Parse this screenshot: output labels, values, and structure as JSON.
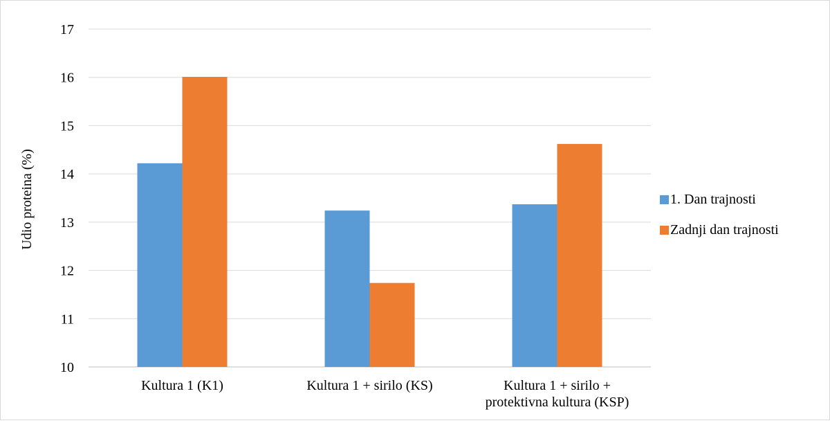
{
  "chart_data": {
    "type": "bar",
    "title": "",
    "xlabel": "",
    "ylabel": "Udio proteina (%)",
    "ylim": [
      10,
      17
    ],
    "yticks": [
      10,
      11,
      12,
      13,
      14,
      15,
      16,
      17
    ],
    "grid": true,
    "legend_position": "right",
    "categories": [
      [
        "Kultura 1 (K1)"
      ],
      [
        "Kultura 1 + sirilo (KS)"
      ],
      [
        "Kultura 1 + sirilo +",
        "protektivna kultura (KSP)"
      ]
    ],
    "series": [
      {
        "name": "1. Dan trajnosti",
        "color": "#5B9BD5",
        "values": [
          14.22,
          13.24,
          13.37
        ]
      },
      {
        "name": "Zadnji dan trajnosti",
        "color": "#ED7D31",
        "values": [
          16.01,
          11.74,
          14.62
        ]
      }
    ]
  }
}
